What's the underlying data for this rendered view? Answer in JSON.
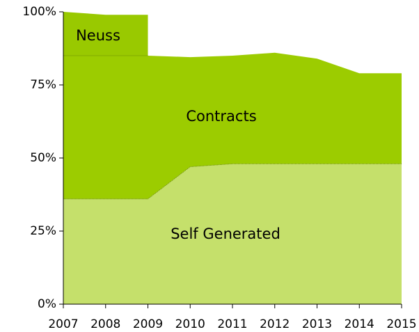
{
  "chart_data": {
    "type": "stacked_area",
    "x": [
      2007,
      2008,
      2009,
      2010,
      2011,
      2012,
      2013,
      2014,
      2015
    ],
    "xlim": [
      2007,
      2015
    ],
    "xticks": [
      2007,
      2008,
      2009,
      2010,
      2011,
      2012,
      2013,
      2014,
      2015
    ],
    "ylim": [
      0,
      100
    ],
    "yticks": [
      {
        "value": 0,
        "label": "0%"
      },
      {
        "value": 25,
        "label": "25%"
      },
      {
        "value": 50,
        "label": "50%"
      },
      {
        "value": 75,
        "label": "75%"
      },
      {
        "value": 100,
        "label": "100%"
      }
    ],
    "series": [
      {
        "name": "Self Generated",
        "color": "#c5e06b",
        "values": [
          36,
          36,
          36,
          47,
          48,
          48,
          48,
          48,
          48
        ]
      },
      {
        "name": "Contracts",
        "color": "#9ccc00",
        "values": [
          49,
          49,
          49,
          37.5,
          37,
          38,
          36,
          31,
          31
        ]
      },
      {
        "name": "Neuss",
        "color": "#99c900",
        "values": [
          15,
          14,
          14,
          null,
          null,
          null,
          null,
          null,
          null
        ]
      }
    ]
  }
}
